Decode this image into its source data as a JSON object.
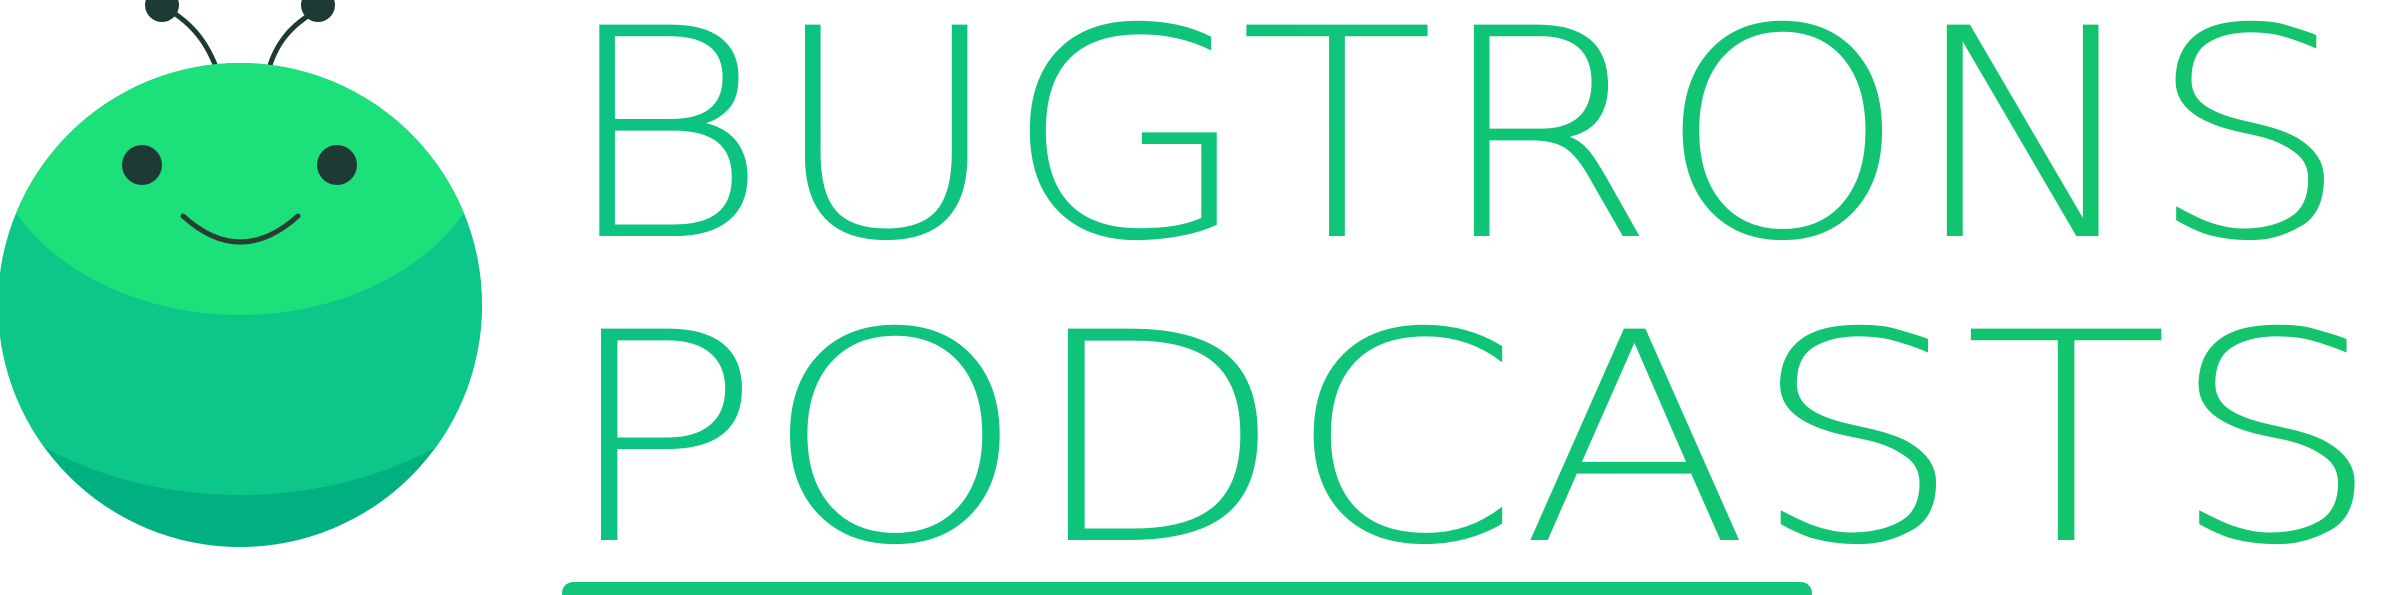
{
  "logo": {
    "line1": "BUGTRONS",
    "line2": "PODCASTS",
    "colors": {
      "text_start": "#0cc383",
      "text_end": "#14c46a",
      "mascot_top": "#1ce07a",
      "mascot_mid": "#0dc78a",
      "mascot_bottom": "#00b080",
      "eyes": "#1e3a36"
    }
  }
}
